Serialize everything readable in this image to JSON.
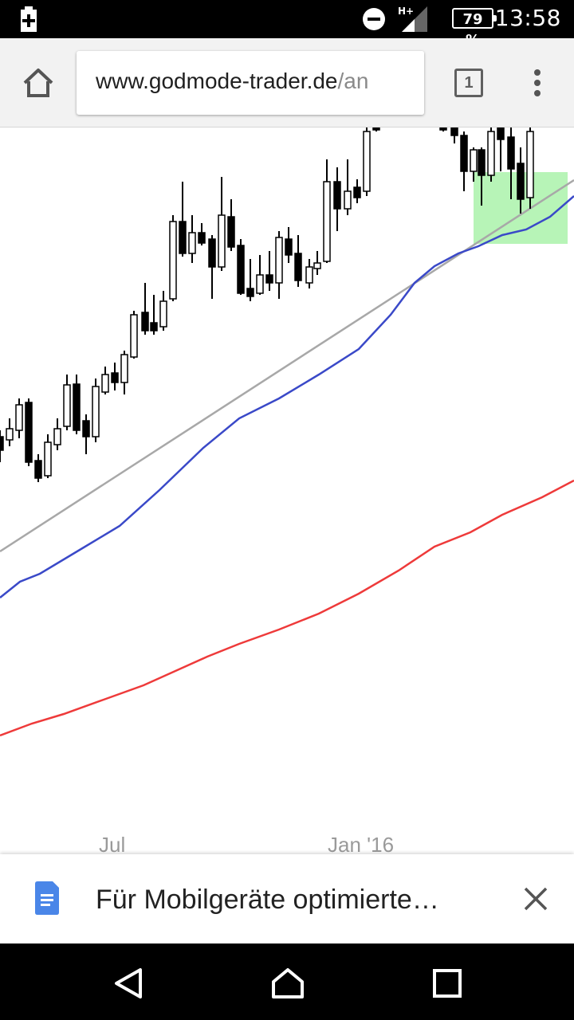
{
  "status_bar": {
    "network": "H+",
    "battery": "79 %",
    "time": "13:58"
  },
  "toolbar": {
    "url_domain": "www.godmode-trader.de",
    "url_path": "/an",
    "tab_count": "1"
  },
  "chart": {
    "x_tick_labels": [
      "Jul",
      "Jan '16"
    ],
    "colors": {
      "candles": "#000000",
      "moving_average_1": "#3a49c8",
      "moving_average_2": "#ee3a3a",
      "trendline": "#a8a8a8",
      "highlight": "#90ee90"
    }
  },
  "chart_data": {
    "type": "candlestick",
    "x_tick_labels": [
      "Jul",
      "Jan '16"
    ],
    "series": [
      {
        "type": "candlestick"
      },
      {
        "type": "line"
      },
      {
        "type": "line"
      },
      {
        "type": "line"
      }
    ],
    "grid": false,
    "legend": "none"
  },
  "infobar": {
    "text": "Für Mobilgeräte optimierte…"
  },
  "icons": {
    "home": "home-icon",
    "menu": "more-vert-icon",
    "doc": "document-icon",
    "close": "close-icon",
    "back": "back-icon",
    "home_nav": "home-nav-icon",
    "recents": "recents-icon",
    "battery_charging": "battery-saver-icon",
    "dnd": "do-not-disturb-icon",
    "signal": "signal-icon"
  }
}
